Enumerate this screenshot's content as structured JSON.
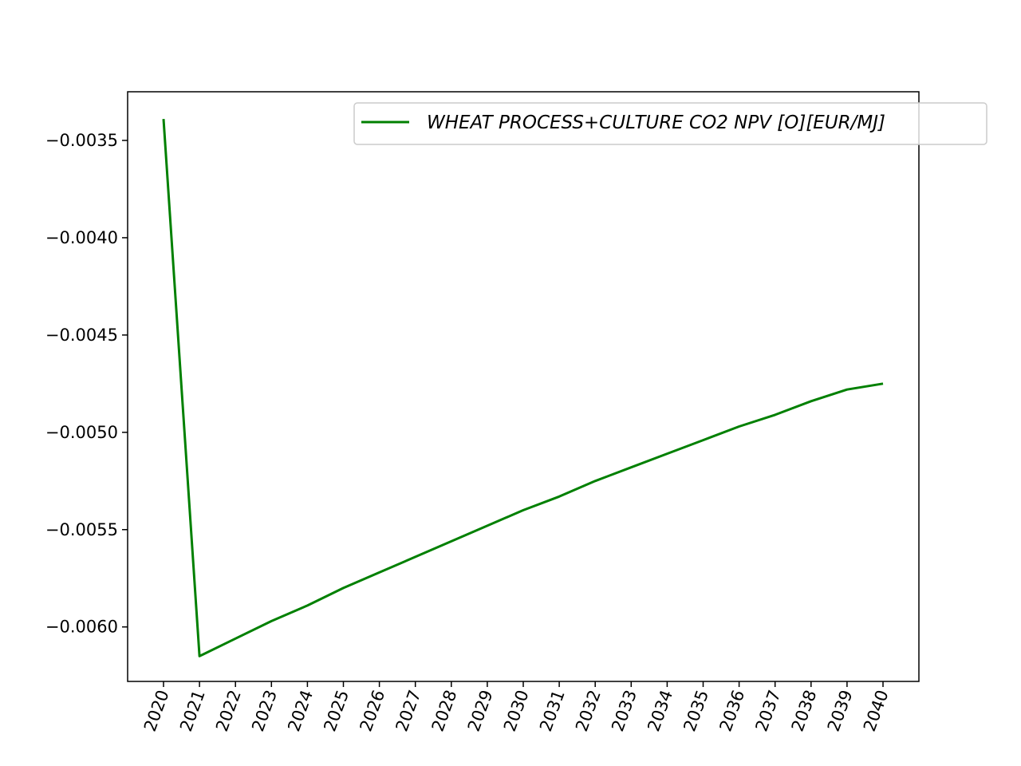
{
  "chart_data": {
    "type": "line",
    "title": "",
    "xlabel": "",
    "ylabel": "",
    "x": [
      "2020",
      "2021",
      "2022",
      "2023",
      "2024",
      "2025",
      "2026",
      "2027",
      "2028",
      "2029",
      "2030",
      "2031",
      "2032",
      "2033",
      "2034",
      "2035",
      "2036",
      "2037",
      "2038",
      "2039",
      "2040"
    ],
    "series": [
      {
        "name": "WHEAT PROCESS+CULTURE CO2 NPV [O][EUR/MJ]",
        "color": "#008000",
        "values": [
          -0.00339,
          -0.00615,
          -0.00606,
          -0.00597,
          -0.00589,
          -0.0058,
          -0.00572,
          -0.00564,
          -0.00556,
          -0.00548,
          -0.0054,
          -0.00533,
          -0.00525,
          -0.00518,
          -0.00511,
          -0.00504,
          -0.00497,
          -0.00491,
          -0.00484,
          -0.00478,
          -0.00475
        ]
      }
    ],
    "ylim": [
      -0.00628,
      -0.00325
    ],
    "yticks": [
      "−0.0060",
      "−0.0055",
      "−0.0050",
      "−0.0045",
      "−0.0040",
      "−0.0035"
    ],
    "ytick_values": [
      -0.006,
      -0.0055,
      -0.005,
      -0.0045,
      -0.004,
      -0.0035
    ],
    "legend_position": "top-right",
    "grid": false
  }
}
